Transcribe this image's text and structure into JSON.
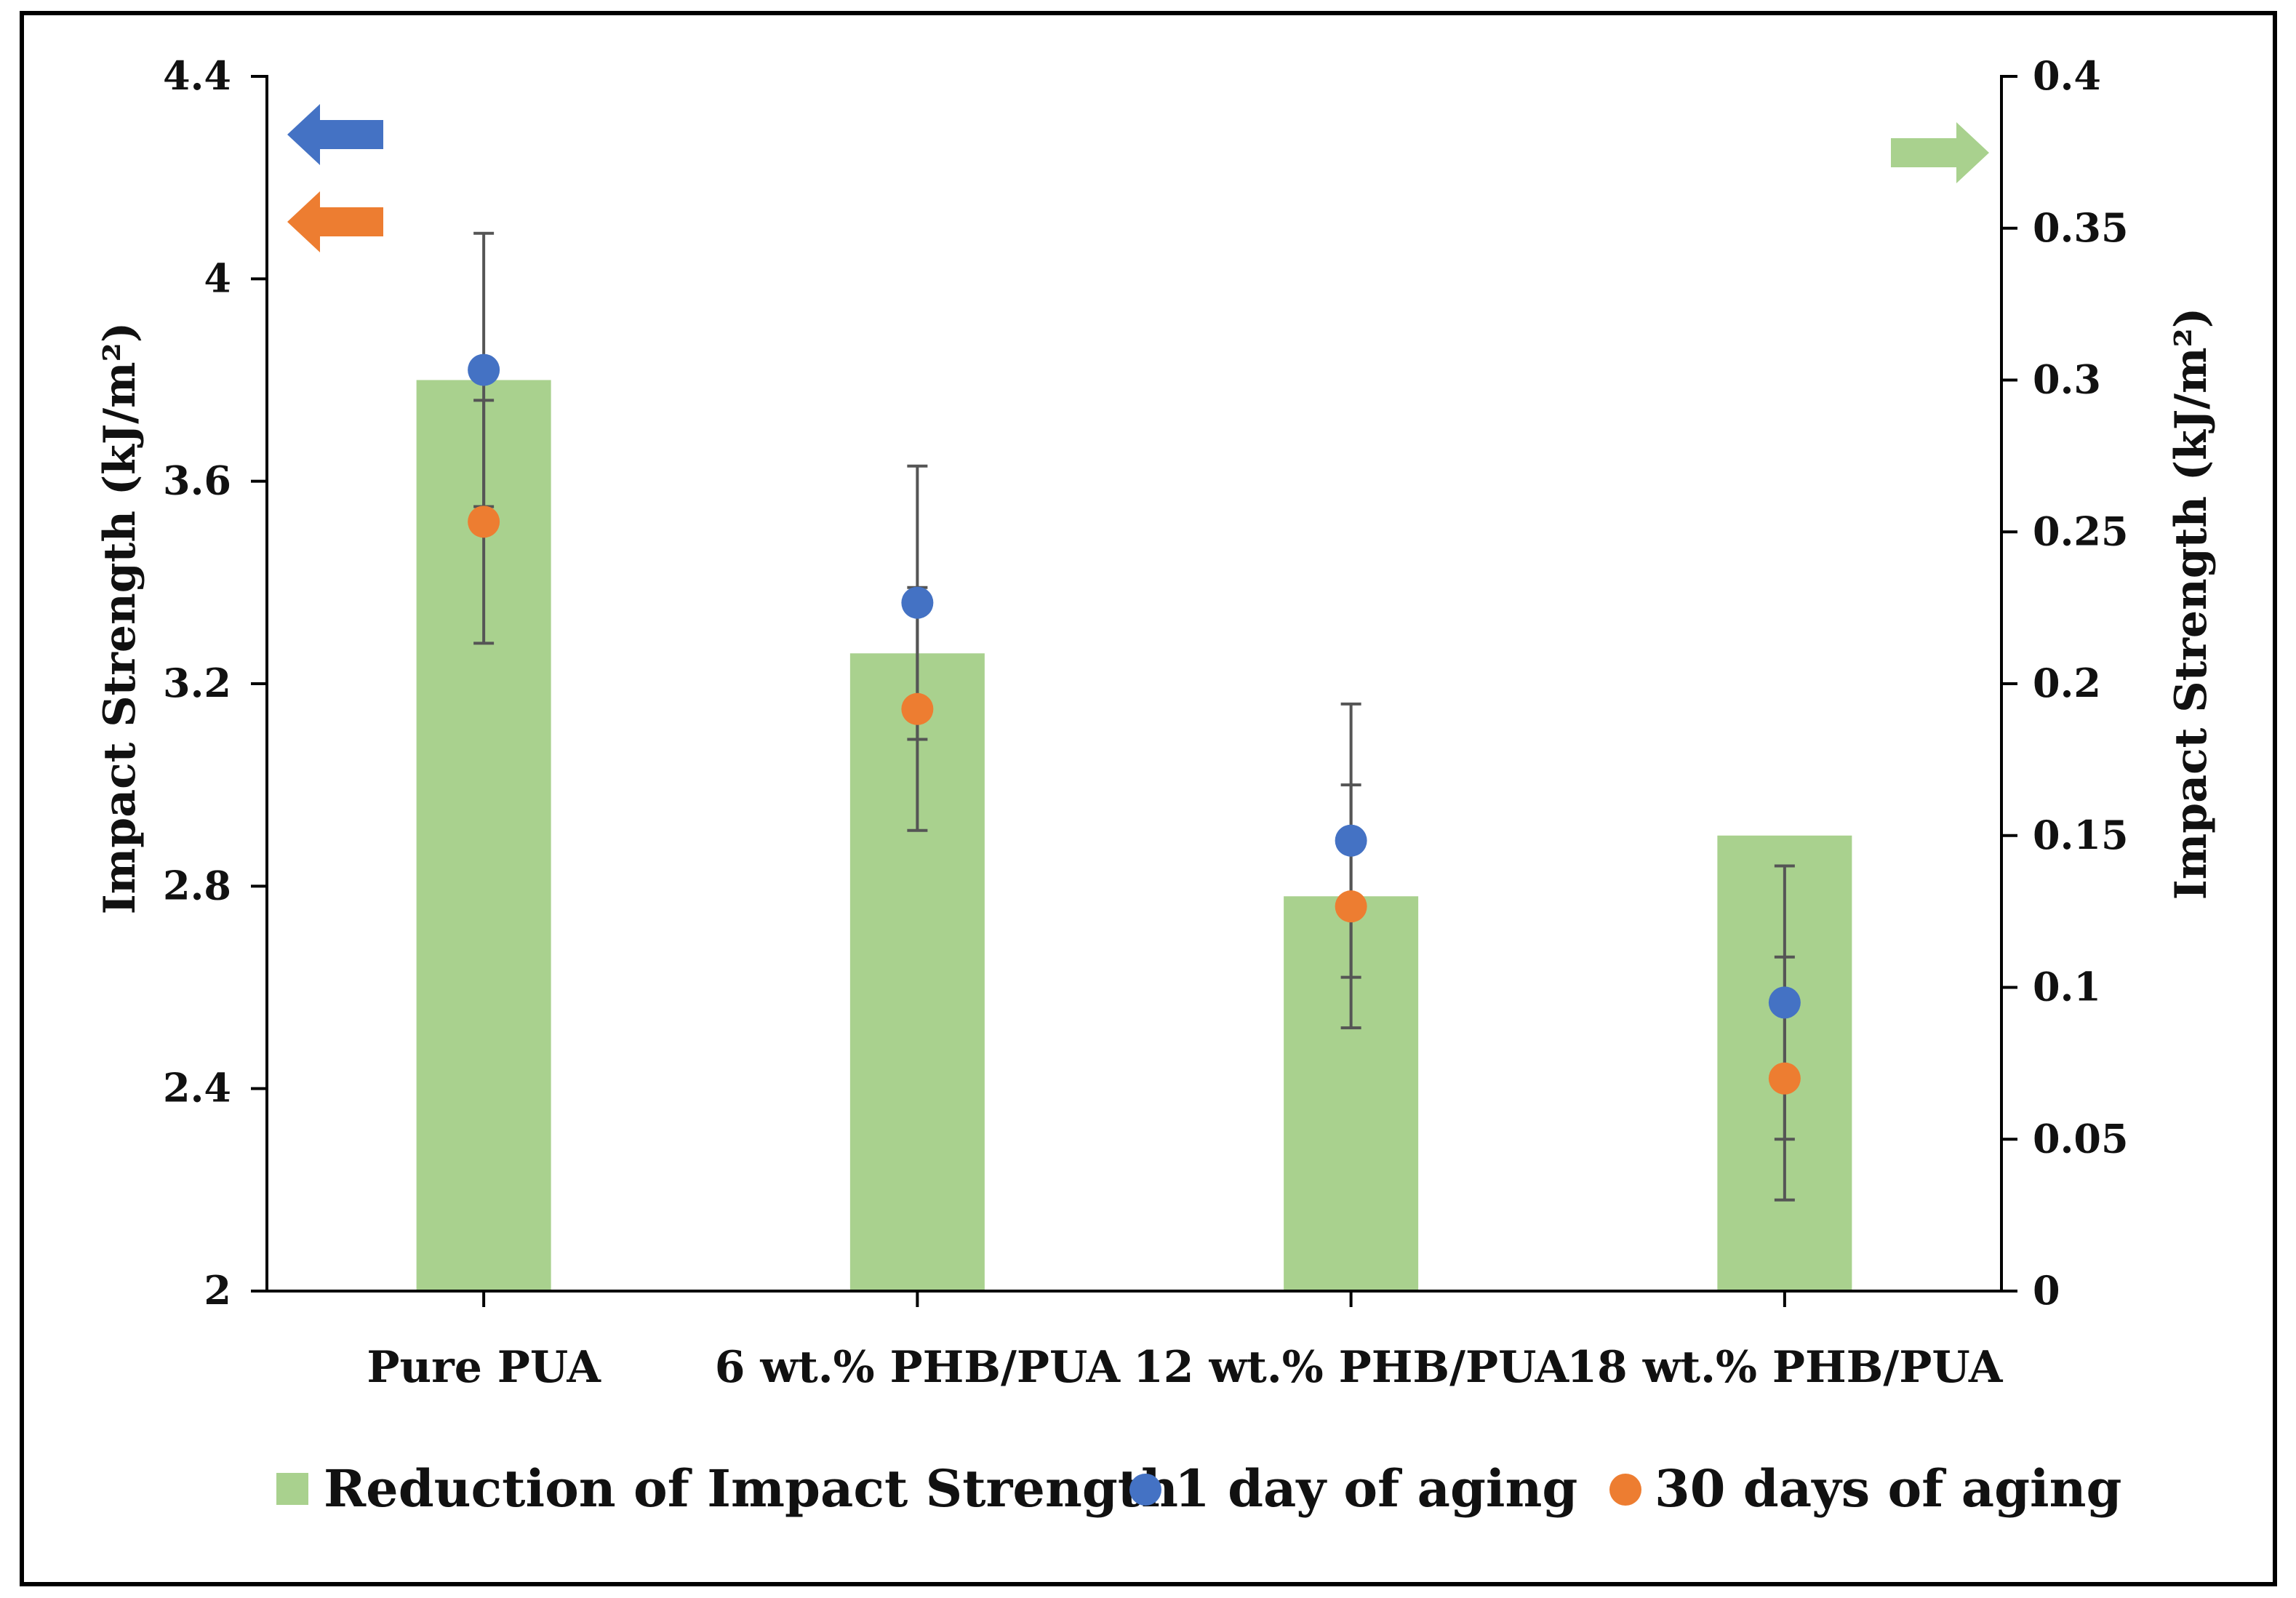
{
  "colors": {
    "bar": "#A9D18E",
    "day1": "#4472C4",
    "day30": "#ED7D31",
    "axis": "#000000",
    "error_bar": "#555555"
  },
  "chart_data": {
    "type": "bar",
    "categories": [
      "Pure PUA",
      "6 wt.% PHB/PUA",
      "12 wt.% PHB/PUA",
      "18 wt.% PHB/PUA"
    ],
    "left_axis": {
      "label": "Impact Strength (kJ/m²)",
      "ylim": [
        2,
        4.4
      ],
      "ticks": [
        2,
        2.4,
        2.8,
        3.2,
        3.6,
        4,
        4.4
      ],
      "tick_labels": [
        "2",
        "2.4",
        "2.8",
        "3.2",
        "3.6",
        "4",
        "4.4"
      ]
    },
    "right_axis": {
      "label": "Impact Strength (kJ/m²)",
      "ylim": [
        0,
        0.4
      ],
      "ticks": [
        0,
        0.05,
        0.1,
        0.15,
        0.2,
        0.25,
        0.3,
        0.35,
        0.4
      ],
      "tick_labels": [
        "0",
        "0.05",
        "0.1",
        "0.15",
        "0.2",
        "0.25",
        "0.3",
        "0.35",
        "0.4"
      ]
    },
    "series": [
      {
        "name": "Reduction of Impact Strength",
        "type": "bar",
        "axis": "right",
        "values": [
          0.3,
          0.21,
          0.13,
          0.15
        ]
      },
      {
        "name": "1 day of aging",
        "type": "scatter",
        "axis": "left",
        "values": [
          3.82,
          3.36,
          2.89,
          2.57
        ],
        "errors": [
          0.27,
          0.27,
          0.27,
          0.27
        ]
      },
      {
        "name": "30 days of aging",
        "type": "scatter",
        "axis": "left",
        "values": [
          3.52,
          3.15,
          2.76,
          2.42
        ],
        "errors": [
          0.24,
          0.24,
          0.24,
          0.24
        ]
      }
    ],
    "legend": {
      "position": "bottom",
      "items": [
        "Reduction of Impact Strength",
        "1 day of aging",
        "30 days of aging"
      ]
    },
    "annotations": [
      {
        "type": "arrow",
        "direction": "left",
        "color": "#4472C4",
        "meaning": "1 day of aging uses left axis"
      },
      {
        "type": "arrow",
        "direction": "left",
        "color": "#ED7D31",
        "meaning": "30 days of aging uses left axis"
      },
      {
        "type": "arrow",
        "direction": "right",
        "color": "#A9D18E",
        "meaning": "bars use right axis"
      }
    ],
    "grid": false
  }
}
